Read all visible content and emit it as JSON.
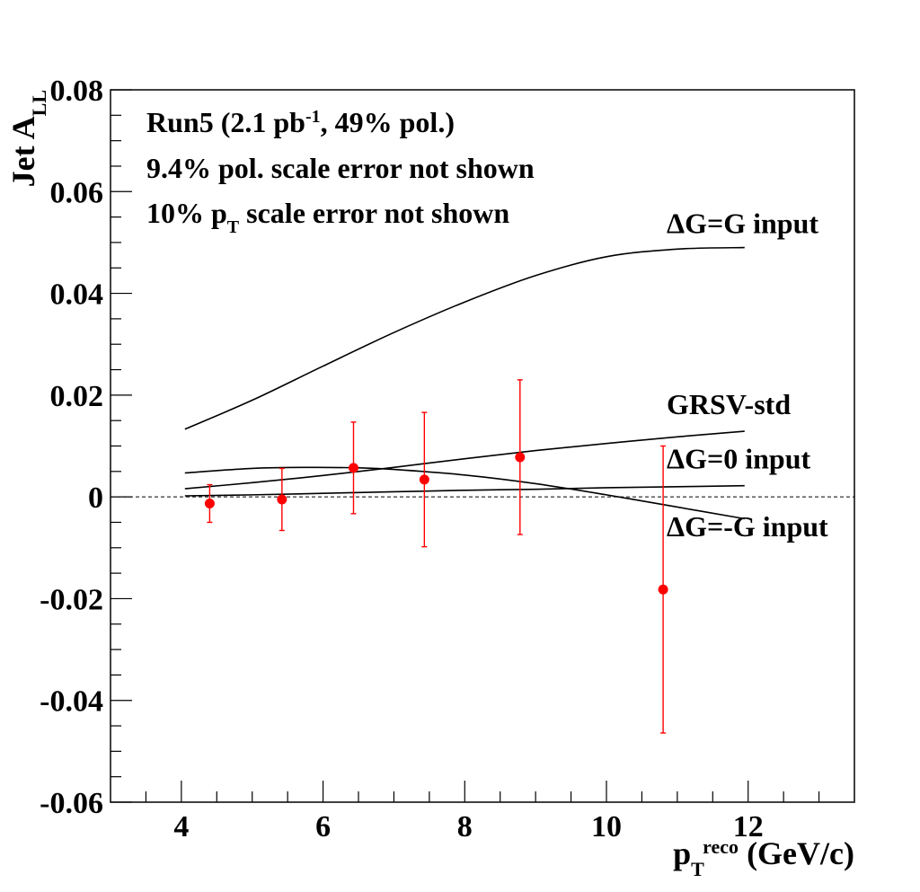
{
  "chart_data": {
    "type": "scatter",
    "xlabel": {
      "base": "p",
      "sub": "T",
      "sup": "reco",
      "rest": " (GeV/c)"
    },
    "ylabel": {
      "base": "Jet A",
      "sub": "LL"
    },
    "xlim": [
      3.0,
      13.5
    ],
    "ylim": [
      -0.06,
      0.08
    ],
    "x_ticks": [
      4,
      6,
      8,
      10,
      12
    ],
    "y_ticks": [
      -0.06,
      -0.04,
      -0.02,
      0,
      0.02,
      0.04,
      0.06,
      0.08
    ],
    "x_tick_labels": [
      "4",
      "6",
      "8",
      "10",
      "12"
    ],
    "y_tick_labels": [
      "-0.06",
      "-0.04",
      "-0.02",
      "0",
      "0.02",
      "0.04",
      "0.06",
      "0.08"
    ],
    "annotations": [
      {
        "parts": [
          {
            "t": "Run5 (2.1 pb"
          },
          {
            "t": "-1",
            "sup": true
          },
          {
            "t": ", 49% pol.)"
          }
        ]
      },
      {
        "parts": [
          {
            "t": "9.4% pol. scale error not shown"
          }
        ]
      },
      {
        "parts": [
          {
            "t": "10% p"
          },
          {
            "t": "T",
            "sub": true
          },
          {
            "t": " scale error not shown"
          }
        ]
      }
    ],
    "points": [
      {
        "x": 4.4,
        "y": -0.0013,
        "err": 0.0037
      },
      {
        "x": 5.42,
        "y": -0.0005,
        "err": 0.0061
      },
      {
        "x": 6.43,
        "y": 0.0057,
        "err": 0.009
      },
      {
        "x": 7.43,
        "y": 0.0034,
        "err": 0.0132
      },
      {
        "x": 8.78,
        "y": 0.0078,
        "err": 0.0152
      },
      {
        "x": 10.8,
        "y": -0.0182,
        "err": 0.0282
      }
    ],
    "series": [
      {
        "name": "ΔG=G input",
        "x": [
          4.05,
          5,
          6,
          7,
          8,
          9,
          10,
          11,
          11.95
        ],
        "y": [
          0.0133,
          0.019,
          0.0257,
          0.0323,
          0.0383,
          0.0435,
          0.0472,
          0.0487,
          0.049
        ]
      },
      {
        "name": "GRSV-std",
        "x": [
          4.05,
          5,
          6,
          7,
          8,
          9,
          10,
          11,
          11.95
        ],
        "y": [
          0.0016,
          0.0028,
          0.0042,
          0.0058,
          0.0075,
          0.0091,
          0.0105,
          0.0118,
          0.0129
        ]
      },
      {
        "name": "ΔG=0 input",
        "x": [
          4.05,
          5,
          6,
          7,
          8,
          9,
          10,
          11,
          11.95
        ],
        "y": [
          0.0002,
          0.0004,
          0.0007,
          0.001,
          0.0013,
          0.0015,
          0.0018,
          0.002,
          0.0022
        ]
      },
      {
        "name": "ΔG=-G input",
        "x": [
          4.05,
          5,
          5.8,
          6.5,
          7,
          8,
          9,
          10,
          11,
          11.95
        ],
        "y": [
          0.0047,
          0.0056,
          0.0058,
          0.0057,
          0.0054,
          0.0043,
          0.0026,
          0.0004,
          -0.002,
          -0.0043
        ]
      }
    ],
    "series_labels": [
      {
        "series": 0,
        "text": "ΔG=G input",
        "at": [
          10.85,
          0.0518
        ]
      },
      {
        "series": 1,
        "text": "GRSV-std",
        "at": [
          10.85,
          0.0163
        ]
      },
      {
        "series": 2,
        "text": "ΔG=0 input",
        "at": [
          10.85,
          0.0056
        ]
      },
      {
        "series": 3,
        "text": "ΔG=-G input",
        "at": [
          10.85,
          -0.0077
        ]
      }
    ],
    "reference_line": {
      "y": 0,
      "style": "dashed"
    },
    "colors": {
      "points": "#ff0000",
      "curves": "#000000",
      "axes": "#000000"
    },
    "grid": false
  }
}
